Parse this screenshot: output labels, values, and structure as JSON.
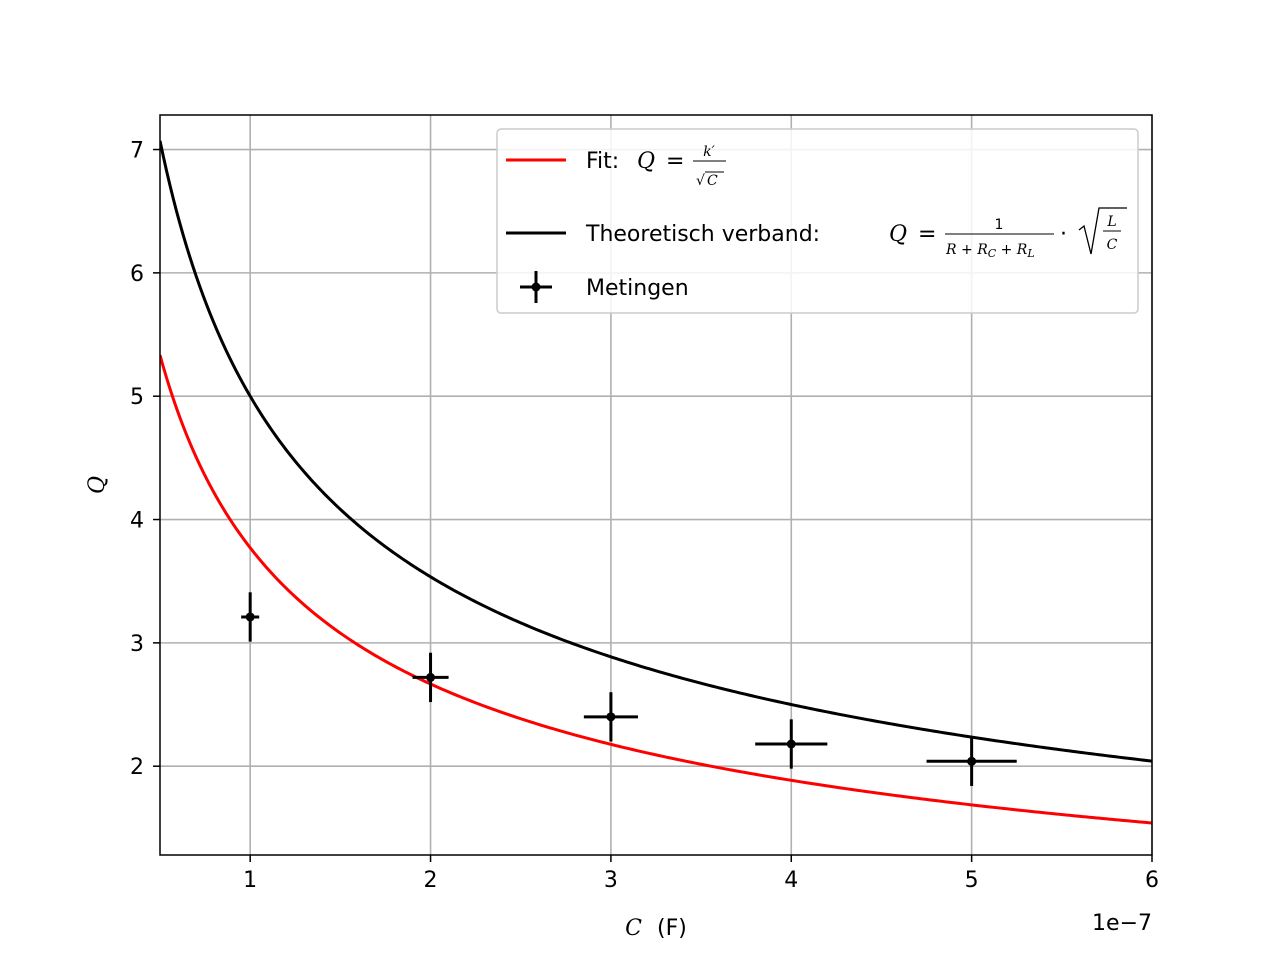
{
  "chart_data": {
    "type": "scatter",
    "title": "",
    "xlabel_var": "C",
    "xlabel_unit": "(F)",
    "ylabel": "Q",
    "x_offset_label": "1e−7",
    "xlim": [
      5e-08,
      6e-07
    ],
    "ylim": [
      1.28,
      7.28
    ],
    "x_ticks": [
      1e-07,
      2e-07,
      3e-07,
      4e-07,
      5e-07,
      6e-07
    ],
    "x_tick_labels": [
      "1",
      "2",
      "3",
      "4",
      "5",
      "6"
    ],
    "y_ticks": [
      2,
      3,
      4,
      5,
      6,
      7
    ],
    "y_tick_labels": [
      "2",
      "3",
      "4",
      "5",
      "6",
      "7"
    ],
    "grid": true,
    "legend_position": "top-right",
    "series": [
      {
        "name": "Fit",
        "kind": "line",
        "color": "#ff0000",
        "model": "k/sqrt(x)",
        "k": 0.0011925,
        "x_range": [
          5e-08,
          6e-07
        ],
        "legend_prefix": "Fit: ",
        "legend_formula": "Q = k′/√C"
      },
      {
        "name": "Theoretisch verband",
        "kind": "line",
        "color": "#000000",
        "model": "k/sqrt(x)",
        "k": 0.0015811,
        "x_range": [
          5e-08,
          6e-07
        ],
        "legend_prefix": "Theoretisch verband: ",
        "legend_formula": "Q = 1/(R + R_C + R_L) · √(L/C)"
      },
      {
        "name": "Metingen",
        "kind": "errorbar",
        "color": "#000000",
        "legend_prefix": "Metingen",
        "points": [
          {
            "x": 1e-07,
            "y": 3.21,
            "xerr": 5e-09,
            "yerr": 0.2
          },
          {
            "x": 2e-07,
            "y": 2.72,
            "xerr": 1e-08,
            "yerr": 0.2
          },
          {
            "x": 3e-07,
            "y": 2.4,
            "xerr": 1.5e-08,
            "yerr": 0.2
          },
          {
            "x": 4e-07,
            "y": 2.18,
            "xerr": 2e-08,
            "yerr": 0.2
          },
          {
            "x": 5e-07,
            "y": 2.04,
            "xerr": 2.5e-08,
            "yerr": 0.2
          }
        ]
      }
    ]
  }
}
